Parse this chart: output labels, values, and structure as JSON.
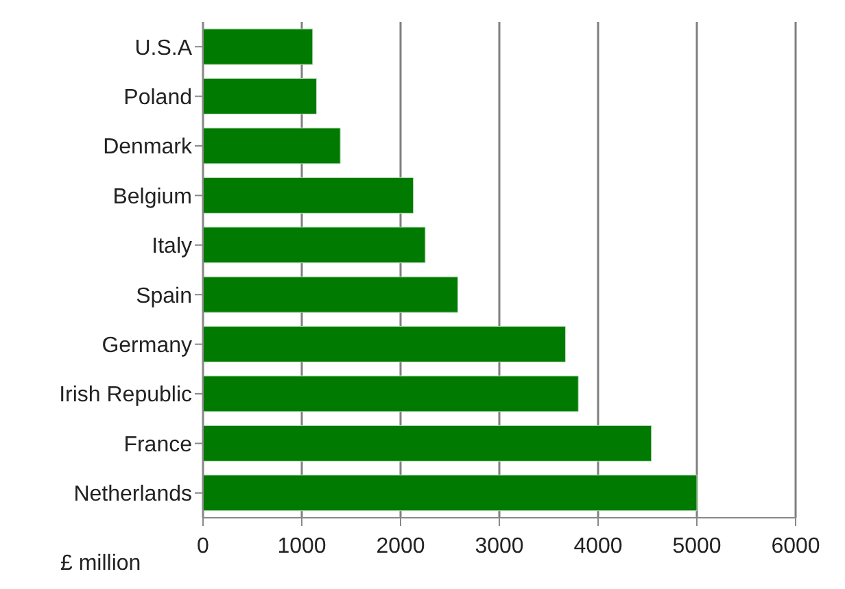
{
  "chart_data": {
    "type": "bar",
    "orientation": "horizontal",
    "xlabel": "£ million",
    "categories": [
      "U.S.A",
      "Poland",
      "Denmark",
      "Belgium",
      "Italy",
      "Spain",
      "Germany",
      "Irish Republic",
      "France",
      "Netherlands"
    ],
    "values": [
      1110,
      1150,
      1390,
      2130,
      2250,
      2580,
      3670,
      3800,
      4540,
      5000
    ],
    "color": "#007a00",
    "xlim": [
      0,
      6000
    ],
    "xticks": [
      0,
      1000,
      2000,
      3000,
      4000,
      5000,
      6000
    ],
    "grid": "x"
  }
}
